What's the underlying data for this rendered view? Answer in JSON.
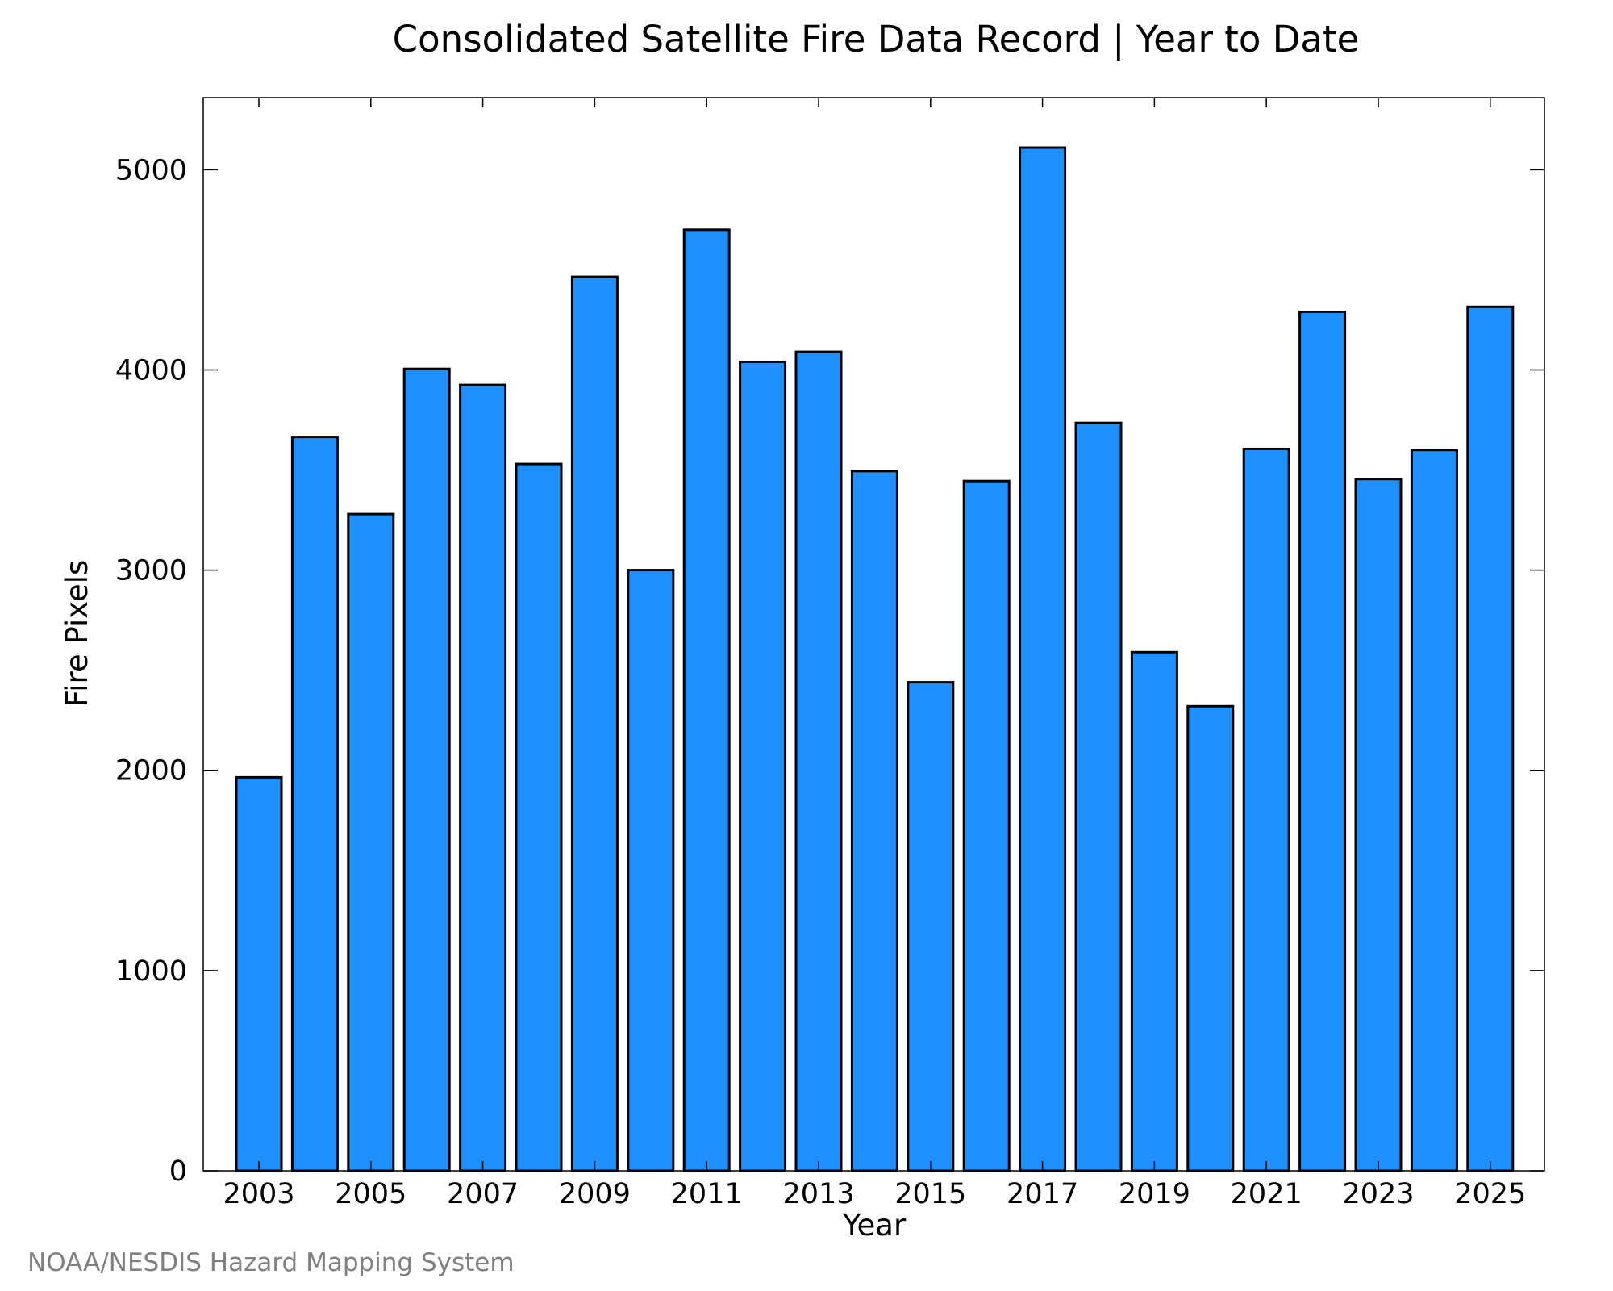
{
  "chart_data": {
    "type": "bar",
    "title": "Consolidated Satellite Fire Data Record | Year to Date",
    "xlabel": "Year",
    "ylabel": "Fire Pixels",
    "categories": [
      "2003",
      "2004",
      "2005",
      "2006",
      "2007",
      "2008",
      "2009",
      "2010",
      "2011",
      "2012",
      "2013",
      "2014",
      "2015",
      "2016",
      "2017",
      "2018",
      "2019",
      "2020",
      "2021",
      "2022",
      "2023",
      "2024",
      "2025"
    ],
    "x_tick_labels": [
      "2003",
      "2005",
      "2007",
      "2009",
      "2011",
      "2013",
      "2015",
      "2017",
      "2019",
      "2021",
      "2023",
      "2025"
    ],
    "y_ticks": [
      0,
      1000,
      2000,
      3000,
      4000,
      5000
    ],
    "values": [
      1965,
      3665,
      3280,
      4005,
      3925,
      3530,
      4465,
      3000,
      4700,
      4040,
      4090,
      3495,
      2440,
      3445,
      5110,
      3735,
      2590,
      2320,
      3605,
      4290,
      3455,
      3600,
      4315
    ],
    "ylim": [
      0,
      5360
    ],
    "grid": false,
    "bar_color": "#1E90FF",
    "edge_color": "#000000"
  },
  "credit": "NOAA/NESDIS Hazard Mapping System"
}
